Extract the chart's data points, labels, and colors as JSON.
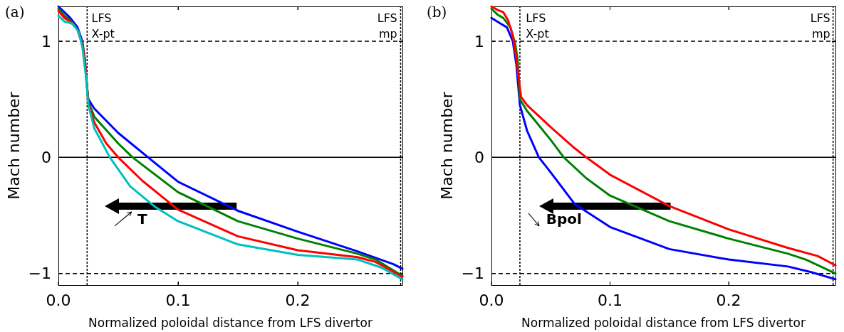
{
  "chart_data": [
    {
      "type": "line",
      "title": "(a)",
      "xlabel": "Normalized poloidal distance from LFS divertor",
      "ylabel": "Mach number",
      "xlim": [
        0,
        0.2875
      ],
      "xticks": [
        {
          "value": 0,
          "label": "0.0"
        },
        {
          "value": 0.1,
          "label": "0.1"
        },
        {
          "value": 0.2,
          "label": "0.2"
        }
      ],
      "ylim": [
        -1.1,
        1.3
      ],
      "yticks": [
        {
          "value": -1,
          "label": "−1"
        },
        {
          "value": 0,
          "label": "0"
        },
        {
          "value": 1,
          "label": "1"
        }
      ],
      "marker": "none",
      "line_style": "solid",
      "series": [
        {
          "color": "#0000ff",
          "x": [
            0,
            0.005,
            0.01,
            0.016,
            0.02,
            0.022,
            0.024,
            0.025,
            0.03,
            0.05,
            0.075,
            0.1,
            0.15,
            0.2,
            0.25,
            0.28,
            0.2875
          ],
          "values": [
            1.3,
            1.25,
            1.2,
            1.12,
            1.0,
            0.85,
            0.6,
            0.5,
            0.42,
            0.21,
            0,
            -0.21,
            -0.46,
            -0.64,
            -0.81,
            -0.92,
            -0.96
          ]
        },
        {
          "color": "#008000",
          "x": [
            0,
            0.005,
            0.01,
            0.016,
            0.02,
            0.022,
            0.024,
            0.025,
            0.03,
            0.05,
            0.062,
            0.1,
            0.15,
            0.2,
            0.25,
            0.265,
            0.2875
          ],
          "values": [
            1.28,
            1.22,
            1.18,
            1.1,
            0.98,
            0.85,
            0.6,
            0.48,
            0.35,
            0.12,
            0,
            -0.3,
            -0.55,
            -0.7,
            -0.83,
            -0.88,
            -1.02
          ]
        },
        {
          "color": "#ff0000",
          "x": [
            0,
            0.005,
            0.01,
            0.016,
            0.02,
            0.022,
            0.024,
            0.025,
            0.03,
            0.04,
            0.05,
            0.07,
            0.1,
            0.15,
            0.2,
            0.25,
            0.265,
            0.2875
          ],
          "values": [
            1.26,
            1.2,
            1.17,
            1.1,
            0.97,
            0.85,
            0.6,
            0.47,
            0.3,
            0.12,
            0,
            -0.2,
            -0.45,
            -0.68,
            -0.8,
            -0.86,
            -0.9,
            -1.03
          ]
        },
        {
          "color": "#00bfbf",
          "x": [
            0,
            0.005,
            0.012,
            0.017,
            0.02,
            0.023,
            0.025,
            0.03,
            0.043,
            0.06,
            0.08,
            0.1,
            0.15,
            0.2,
            0.25,
            0.27,
            0.2875
          ],
          "values": [
            1.22,
            1.17,
            1.15,
            1.08,
            0.95,
            0.7,
            0.45,
            0.25,
            0,
            -0.25,
            -0.42,
            -0.55,
            -0.75,
            -0.84,
            -0.88,
            -0.95,
            -1.05
          ]
        }
      ],
      "ref_lines": [
        {
          "axis": "y",
          "value": 1,
          "color": "#000000",
          "line_style": "dashed"
        },
        {
          "axis": "y",
          "value": -1,
          "color": "#000000",
          "line_style": "dashed"
        },
        {
          "axis": "y",
          "value": 0,
          "color": "#000000",
          "line_style": "solid"
        },
        {
          "axis": "x",
          "value": 0.024,
          "color": "#000000",
          "line_style": "dotted"
        },
        {
          "axis": "x",
          "value": 0.286,
          "color": "#000000",
          "line_style": "dotted"
        }
      ],
      "annotations": [
        "LFS\nX-pt",
        "LFS\nmp",
        "T"
      ]
    },
    {
      "type": "line",
      "title": "(b)",
      "xlabel": "Normalized poloidal distance from LFS divertor",
      "ylabel": "Mach number",
      "xlim": [
        0,
        0.29
      ],
      "xticks": [
        {
          "value": 0,
          "label": "0.0"
        },
        {
          "value": 0.1,
          "label": "0.1"
        },
        {
          "value": 0.2,
          "label": "0.2"
        }
      ],
      "ylim": [
        -1.1,
        1.3
      ],
      "yticks": [
        {
          "value": -1,
          "label": "−1"
        },
        {
          "value": 0,
          "label": "0"
        },
        {
          "value": 1,
          "label": "1"
        }
      ],
      "marker": "none",
      "line_style": "solid",
      "series": [
        {
          "color": "#0000ff",
          "x": [
            0,
            0.008,
            0.013,
            0.018,
            0.021,
            0.024,
            0.03,
            0.04,
            0.05,
            0.07,
            0.1,
            0.15,
            0.2,
            0.25,
            0.27,
            0.29
          ],
          "values": [
            1.2,
            1.15,
            1.12,
            1.0,
            0.8,
            0.45,
            0.23,
            0,
            -0.13,
            -0.4,
            -0.6,
            -0.79,
            -0.88,
            -0.94,
            -0.99,
            -1.05
          ]
        },
        {
          "color": "#008000",
          "x": [
            0,
            0.005,
            0.01,
            0.016,
            0.02,
            0.022,
            0.024,
            0.03,
            0.05,
            0.061,
            0.08,
            0.1,
            0.15,
            0.2,
            0.25,
            0.265,
            0.29
          ],
          "values": [
            1.28,
            1.23,
            1.2,
            1.12,
            0.98,
            0.85,
            0.5,
            0.4,
            0.15,
            0,
            -0.18,
            -0.33,
            -0.55,
            -0.7,
            -0.83,
            -0.88,
            -1.0
          ]
        },
        {
          "color": "#ff0000",
          "x": [
            0,
            0.005,
            0.01,
            0.014,
            0.018,
            0.021,
            0.024,
            0.025,
            0.03,
            0.05,
            0.07,
            0.08,
            0.1,
            0.15,
            0.2,
            0.25,
            0.275,
            0.29
          ],
          "values": [
            1.3,
            1.27,
            1.25,
            1.18,
            1.05,
            0.85,
            0.6,
            0.52,
            0.45,
            0.26,
            0.08,
            0,
            -0.15,
            -0.42,
            -0.62,
            -0.78,
            -0.85,
            -0.93
          ]
        }
      ],
      "ref_lines": [
        {
          "axis": "y",
          "value": 1,
          "color": "#000000",
          "line_style": "dashed"
        },
        {
          "axis": "y",
          "value": -1,
          "color": "#000000",
          "line_style": "dashed"
        },
        {
          "axis": "y",
          "value": 0,
          "color": "#000000",
          "line_style": "solid"
        },
        {
          "axis": "x",
          "value": 0.024,
          "color": "#000000",
          "line_style": "dotted"
        },
        {
          "axis": "x",
          "value": 0.288,
          "color": "#000000",
          "line_style": "dotted"
        }
      ],
      "annotations": [
        "LFS\nX-pt",
        "LFS\nmp",
        "Bpol"
      ]
    }
  ]
}
